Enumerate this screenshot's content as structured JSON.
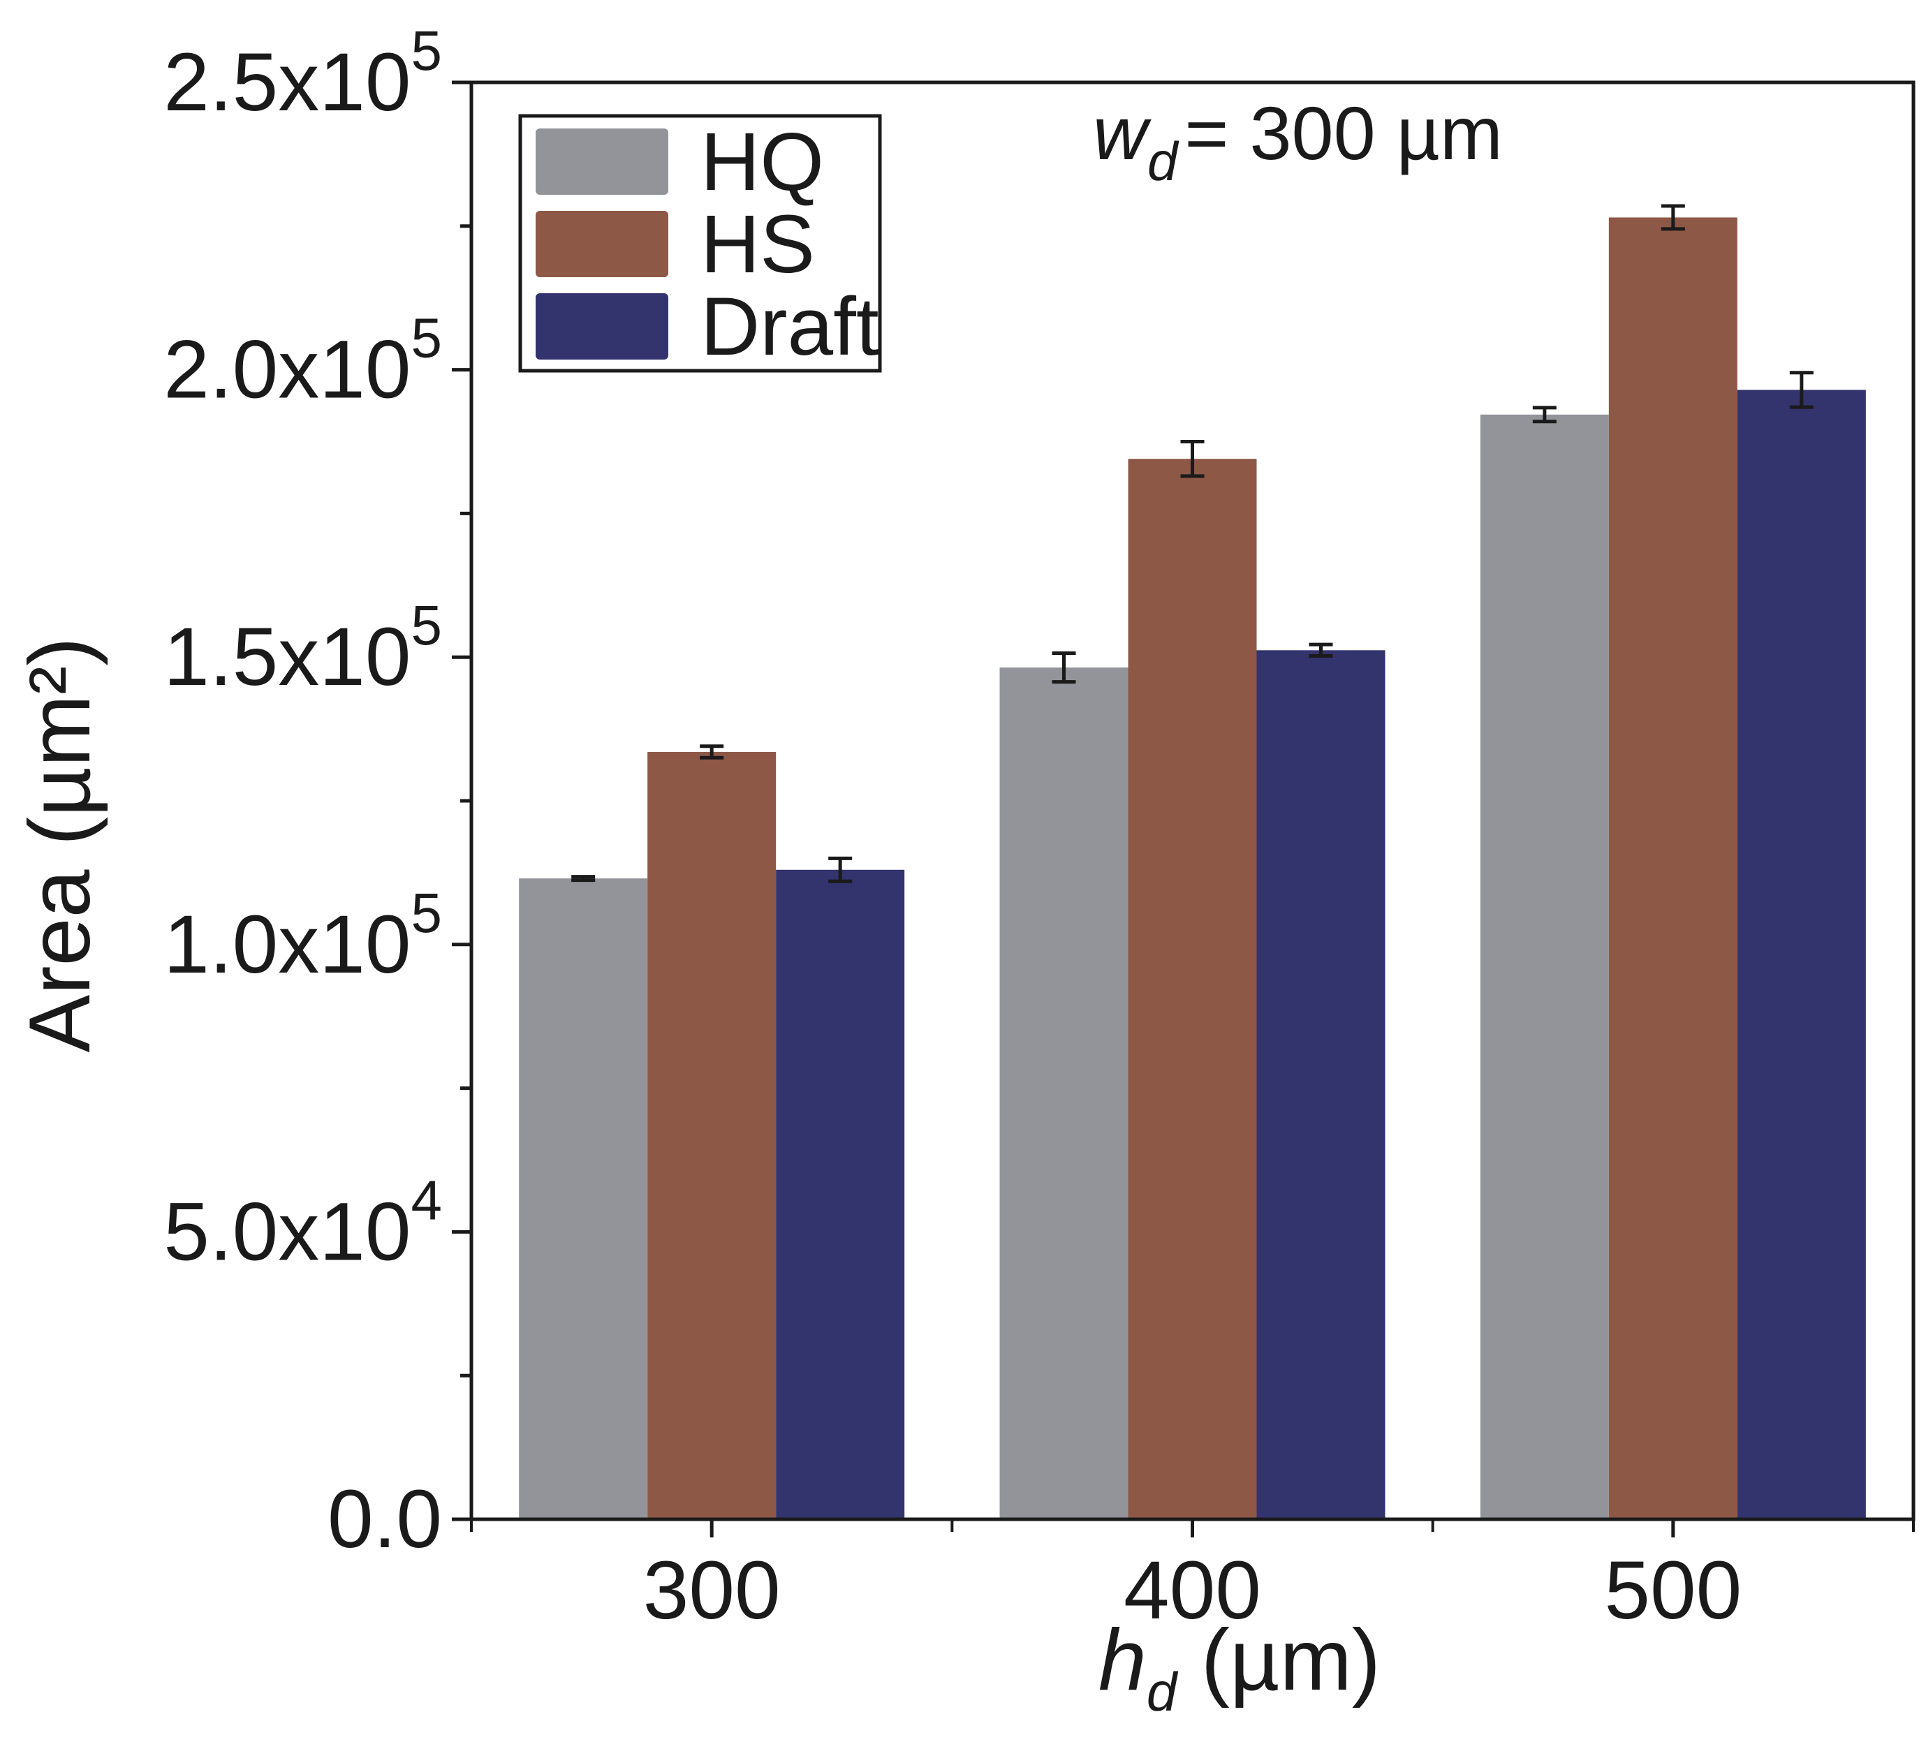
{
  "chart_data": {
    "type": "bar",
    "xlabel_symbol": "h",
    "xlabel_subscript": "d",
    "xlabel_unit": " (µm)",
    "ylabel": "Area (µm²)",
    "ylim": [
      0,
      250000
    ],
    "categories": [
      "300",
      "400",
      "500"
    ],
    "series": [
      {
        "name": "HQ",
        "color": "#939499",
        "values": [
          111500,
          148200,
          192200
        ],
        "errors": [
          300,
          2500,
          1200
        ]
      },
      {
        "name": "HS",
        "color": "#8e5847",
        "values": [
          133500,
          184500,
          226500
        ],
        "errors": [
          1000,
          3000,
          2000
        ]
      },
      {
        "name": "Draft",
        "color": "#33336e",
        "values": [
          113000,
          151200,
          196500
        ],
        "errors": [
          2000,
          1000,
          3000
        ]
      }
    ],
    "yticks": [
      {
        "value": 0,
        "mantissa": "0.0",
        "base": "",
        "exp": ""
      },
      {
        "value": 50000,
        "mantissa": "5.0x10",
        "base": "",
        "exp": "4"
      },
      {
        "value": 100000,
        "mantissa": "1.0x10",
        "base": "",
        "exp": "5"
      },
      {
        "value": 150000,
        "mantissa": "1.5x10",
        "base": "",
        "exp": "5"
      },
      {
        "value": 200000,
        "mantissa": "2.0x10",
        "base": "",
        "exp": "5"
      },
      {
        "value": 250000,
        "mantissa": "2.5x10",
        "base": "",
        "exp": "5"
      }
    ],
    "minor_ytick_step": 25000,
    "annotation": {
      "symbol": "w",
      "subscript": "d",
      "text": "= 300 µm"
    },
    "legend_position": "top-left",
    "grid": false
  }
}
